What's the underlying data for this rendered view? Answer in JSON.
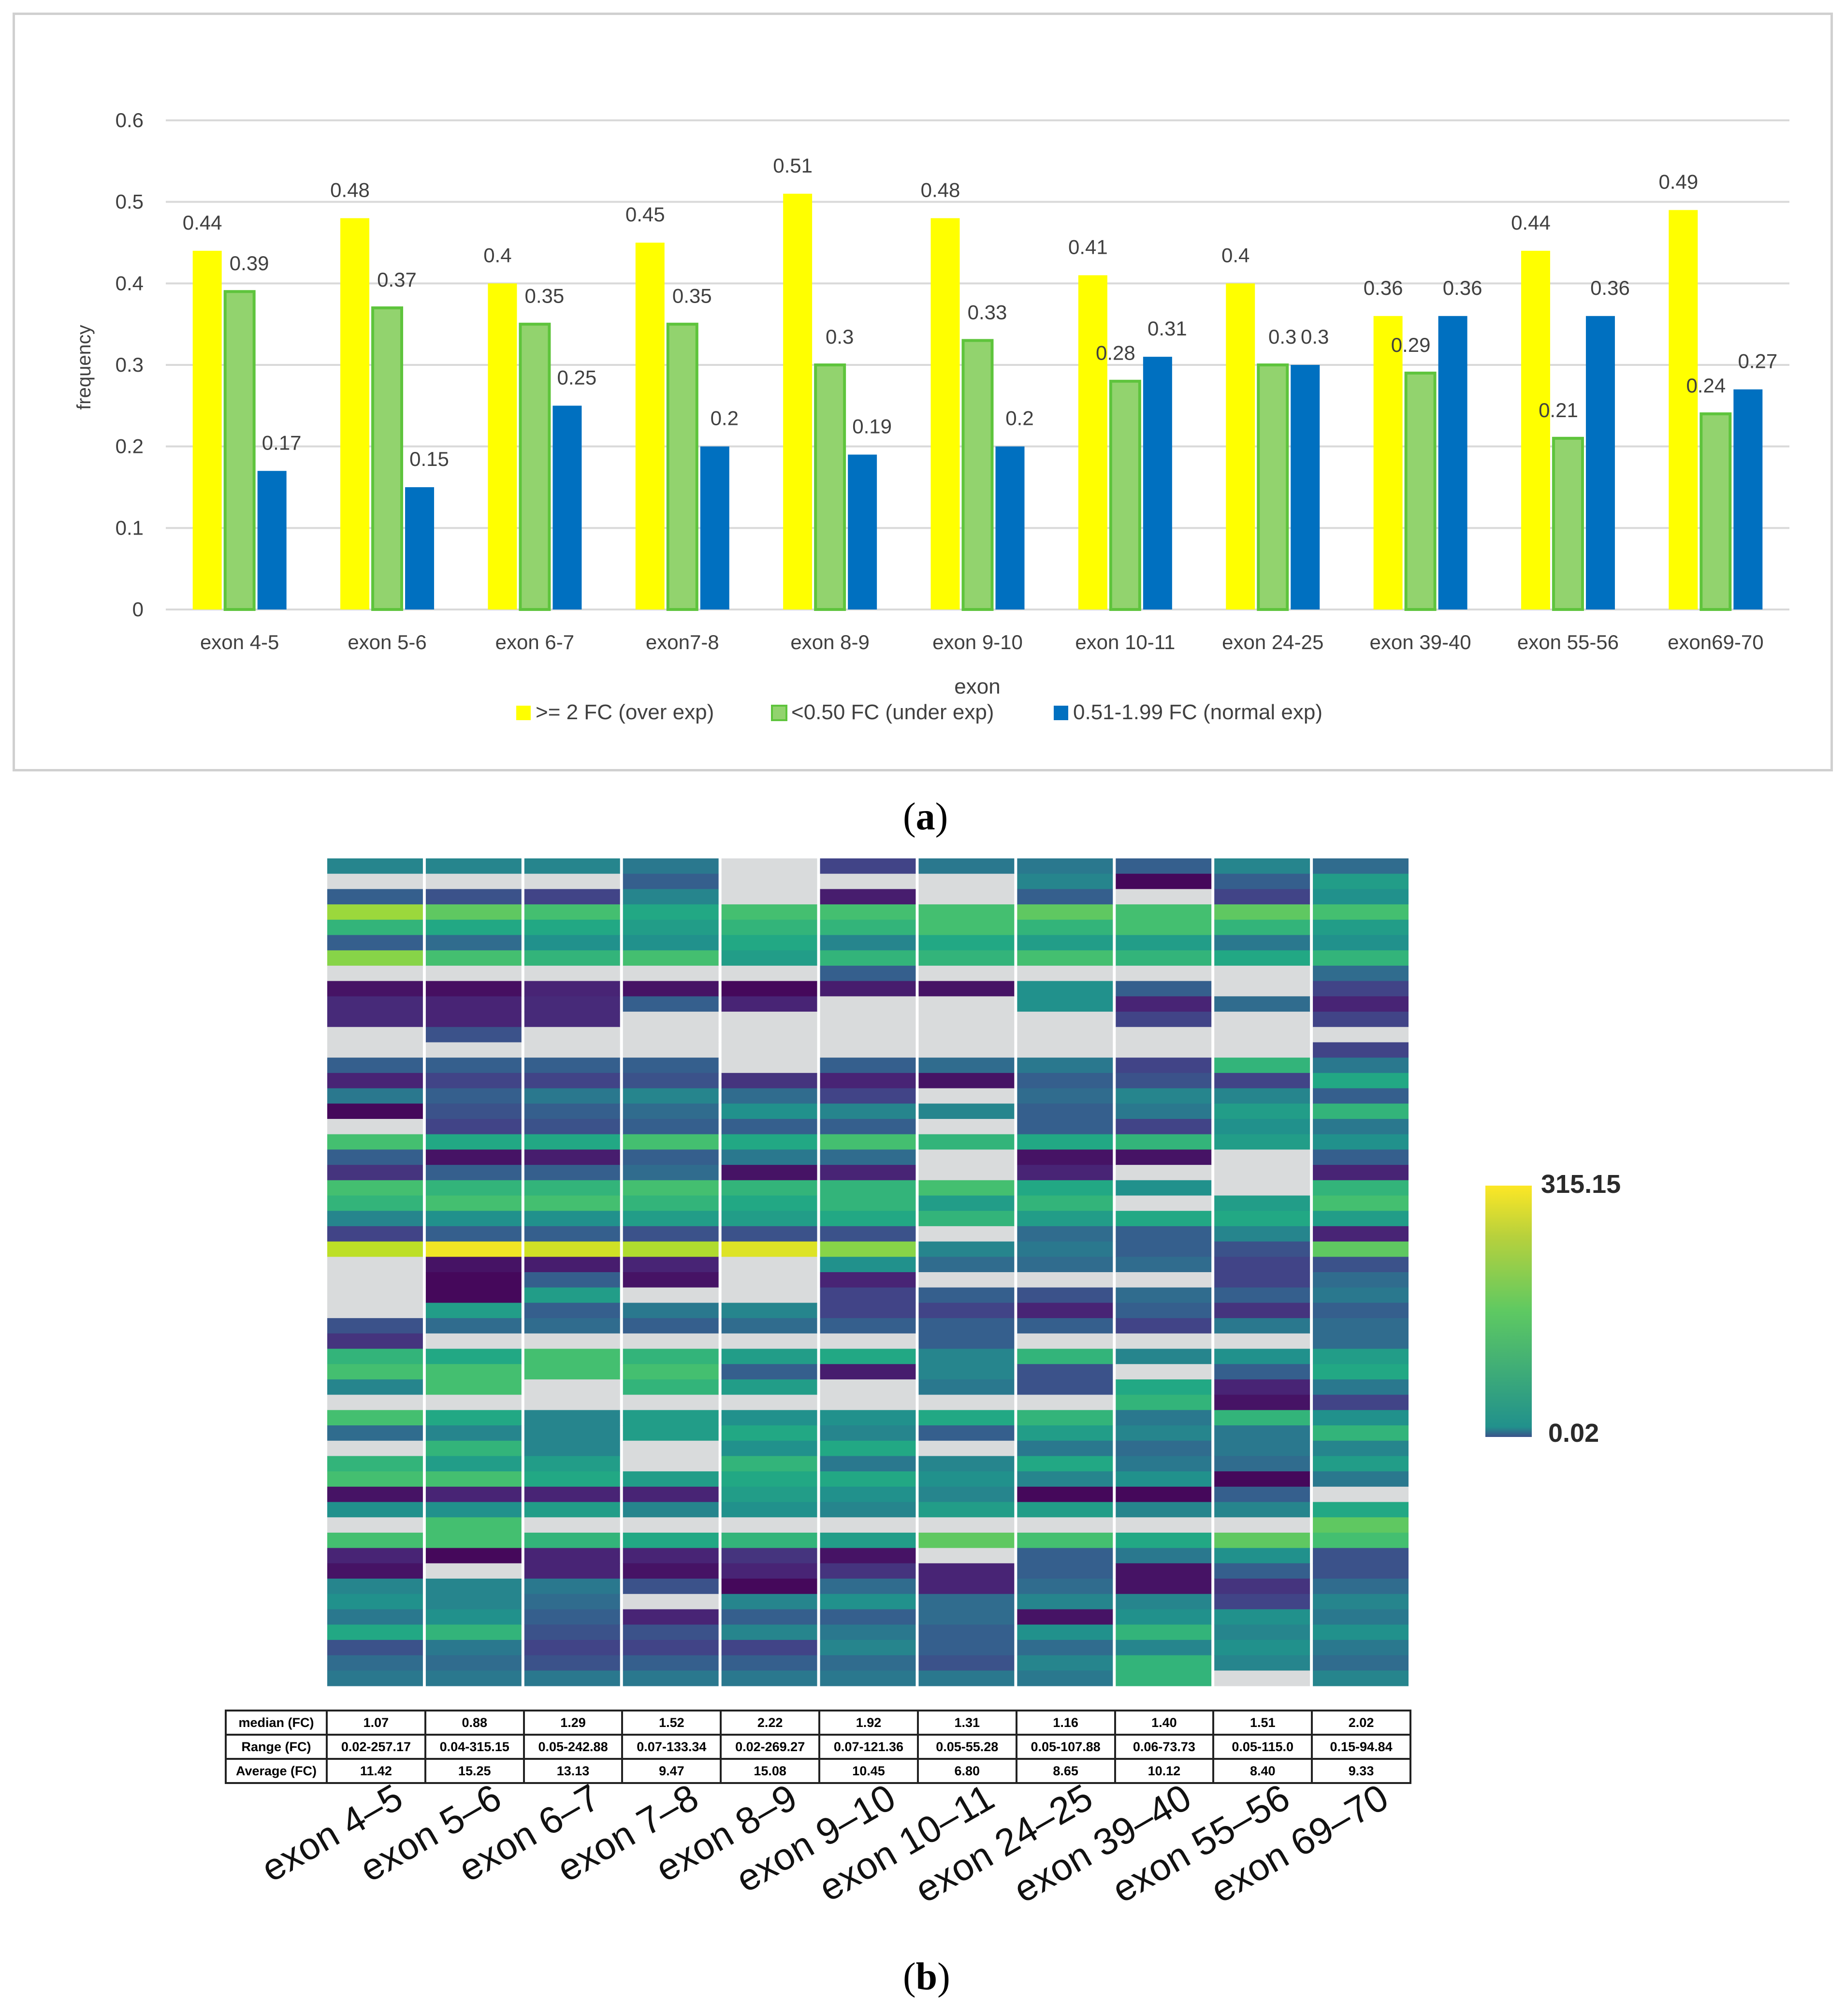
{
  "panel_a": {
    "label_open": "(",
    "label_letter": "a",
    "label_close": ")",
    "legend_position": "bottom",
    "colors": {
      "over": "#ffff00",
      "under": "#92d36e",
      "under_edge": "#5ec43c",
      "normal": "#0070c0",
      "grid": "#d9d9d9"
    }
  },
  "panel_b": {
    "label_open": "(",
    "label_letter": "b",
    "label_close": ")",
    "colorbar_max_label": "315.15",
    "colorbar_min_label": "0.02",
    "na_color": "#d9dbdc",
    "table": {
      "rows": [
        {
          "name": "median (FC)",
          "values": [
            "1.07",
            "0.88",
            "1.29",
            "1.52",
            "2.22",
            "1.92",
            "1.31",
            "1.16",
            "1.40",
            "1.51",
            "2.02"
          ]
        },
        {
          "name": "Range (FC)",
          "values": [
            "0.02-257.17",
            "0.04-315.15",
            "0.05-242.88",
            "0.07-133.34",
            "0.02-269.27",
            "0.07-121.36",
            "0.05-55.28",
            "0.05-107.88",
            "0.06-73.73",
            "0.05-115.0",
            "0.15-94.84"
          ]
        },
        {
          "name": "Average (FC)",
          "values": [
            "11.42",
            "15.25",
            "13.13",
            "9.47",
            "15.08",
            "10.45",
            "6.80",
            "8.65",
            "10.12",
            "8.40",
            "9.33"
          ]
        }
      ]
    },
    "x_labels": [
      "exon 4–5",
      "exon 5–6",
      "exon 6–7",
      "exon 7–8",
      "exon 8–9",
      "exon 9–10",
      "exon 10–11",
      "exon 24–25",
      "exon 39–40",
      "exon 55–56",
      "exon 69–70"
    ]
  },
  "chart_data": [
    {
      "type": "bar",
      "xlabel": "exon",
      "ylabel": "frequency",
      "ylim": [
        0,
        0.6
      ],
      "yticks": [
        "0",
        "0.1",
        "0.2",
        "0.3",
        "0.4",
        "0.5",
        "0.6"
      ],
      "grid": true,
      "categories": [
        "exon 4-5",
        "exon 5-6",
        "exon 6-7",
        "exon7-8",
        "exon 8-9",
        "exon 9-10",
        "exon 10-11",
        "exon 24-25",
        "exon 39-40",
        "exon 55-56",
        "exon69-70"
      ],
      "series": [
        {
          "name": ">= 2 FC (over exp)",
          "values": [
            0.44,
            0.48,
            0.4,
            0.45,
            0.51,
            0.48,
            0.41,
            0.4,
            0.36,
            0.44,
            0.49
          ]
        },
        {
          "name": "<0.50 FC (under exp)",
          "values": [
            0.39,
            0.37,
            0.35,
            0.35,
            0.3,
            0.33,
            0.28,
            0.3,
            0.29,
            0.21,
            0.24
          ]
        },
        {
          "name": "0.51-1.99 FC (normal exp)",
          "values": [
            0.17,
            0.15,
            0.25,
            0.2,
            0.19,
            0.2,
            0.31,
            0.3,
            0.36,
            0.36,
            0.27
          ]
        }
      ],
      "data_labels": [
        [
          "0.44",
          "0.48",
          "0.4",
          "0.45",
          "0.51",
          "0.48",
          "0.41",
          "0.4",
          "0.36",
          "0.44",
          "0.49"
        ],
        [
          "0.39",
          "0.37",
          "0.35",
          "0.35",
          "0.3",
          "0.33",
          "0.28",
          "0.3",
          "0.29",
          "0.21",
          "0.24"
        ],
        [
          "0.17",
          "0.15",
          "0.25",
          "0.2",
          "0.19",
          "0.2",
          "0.31",
          "0.3",
          "0.36",
          "0.36",
          "0.27"
        ]
      ]
    },
    {
      "type": "heatmap",
      "columns": [
        "exon 4–5",
        "exon 5–6",
        "exon 6–7",
        "exon 7–8",
        "exon 8–9",
        "exon 9–10",
        "exon 10–11",
        "exon 24–25",
        "exon 39–40",
        "exon 55–56",
        "exon 69–70"
      ],
      "value_range": [
        0.02,
        315.15
      ],
      "colormap": "viridis",
      "rows": 54,
      "missing_value": "NA",
      "note_values": "levels 0..1 of the viridis scale, -1 = not available",
      "levels": [
        [
          0.45,
          0.45,
          0.45,
          0.4,
          -1,
          0.2,
          0.4,
          0.4,
          0.3,
          0.45,
          0.35
        ],
        [
          -1,
          -1,
          -1,
          0.3,
          -1,
          -1,
          -1,
          0.45,
          0.02,
          0.3,
          0.55
        ],
        [
          0.3,
          0.25,
          0.2,
          0.45,
          -1,
          0.08,
          -1,
          0.3,
          -1,
          0.2,
          0.5
        ],
        [
          0.85,
          0.75,
          0.7,
          0.6,
          0.7,
          0.7,
          0.7,
          0.75,
          0.7,
          0.75,
          0.7
        ],
        [
          0.65,
          0.6,
          0.6,
          0.55,
          0.65,
          0.65,
          0.7,
          0.65,
          0.7,
          0.65,
          0.55
        ],
        [
          0.3,
          0.35,
          0.5,
          0.5,
          0.6,
          0.45,
          0.6,
          0.55,
          0.55,
          0.4,
          0.5
        ],
        [
          0.82,
          0.7,
          0.65,
          0.7,
          0.55,
          0.65,
          0.65,
          0.7,
          0.65,
          0.6,
          0.65
        ],
        [
          -1,
          -1,
          -1,
          -1,
          -1,
          0.3,
          -1,
          -1,
          -1,
          -1,
          0.35
        ],
        [
          0.05,
          0.04,
          0.1,
          0.05,
          0.02,
          0.08,
          0.05,
          0.5,
          0.3,
          -1,
          0.2
        ],
        [
          0.12,
          0.1,
          0.12,
          0.3,
          0.1,
          -1,
          -1,
          0.5,
          0.1,
          0.35,
          0.1
        ],
        [
          0.12,
          0.1,
          0.12,
          -1,
          -1,
          -1,
          -1,
          -1,
          0.2,
          -1,
          0.2
        ],
        [
          -1,
          0.25,
          -1,
          -1,
          -1,
          -1,
          -1,
          -1,
          -1,
          -1,
          -1
        ],
        [
          -1,
          -1,
          -1,
          -1,
          -1,
          -1,
          -1,
          -1,
          -1,
          -1,
          0.2
        ],
        [
          0.3,
          0.3,
          0.3,
          0.3,
          -1,
          0.3,
          0.35,
          0.4,
          0.2,
          0.65,
          0.4
        ],
        [
          0.1,
          0.2,
          0.2,
          0.25,
          0.15,
          0.1,
          0.05,
          0.3,
          0.25,
          0.2,
          0.6
        ],
        [
          0.4,
          0.3,
          0.4,
          0.45,
          0.35,
          0.2,
          -1,
          0.35,
          0.45,
          0.45,
          0.3
        ],
        [
          0.02,
          0.25,
          0.3,
          0.35,
          0.5,
          0.45,
          0.45,
          0.3,
          0.4,
          0.55,
          0.65
        ],
        [
          -1,
          0.2,
          0.25,
          0.3,
          0.3,
          0.3,
          -1,
          0.3,
          0.2,
          0.5,
          0.4
        ],
        [
          0.7,
          0.6,
          0.6,
          0.7,
          0.6,
          0.7,
          0.65,
          0.6,
          0.65,
          0.55,
          0.5
        ],
        [
          0.3,
          0.05,
          0.08,
          0.3,
          0.4,
          0.35,
          -1,
          0.05,
          0.05,
          -1,
          0.3
        ],
        [
          0.15,
          0.3,
          0.3,
          0.35,
          0.05,
          0.1,
          -1,
          0.1,
          -1,
          -1,
          0.1
        ],
        [
          0.7,
          0.65,
          0.65,
          0.7,
          0.65,
          0.65,
          0.7,
          0.6,
          0.5,
          -1,
          0.65
        ],
        [
          0.65,
          0.7,
          0.7,
          0.65,
          0.6,
          0.65,
          0.55,
          0.65,
          -1,
          0.55,
          0.7
        ],
        [
          0.45,
          0.5,
          0.5,
          0.55,
          0.55,
          0.6,
          0.65,
          0.55,
          0.6,
          0.6,
          0.55
        ],
        [
          0.2,
          0.3,
          0.3,
          0.25,
          0.25,
          0.25,
          -1,
          0.35,
          0.3,
          0.45,
          0.1
        ],
        [
          0.9,
          0.98,
          0.93,
          0.88,
          0.95,
          0.82,
          0.45,
          0.4,
          0.3,
          0.25,
          0.75
        ],
        [
          -1,
          0.05,
          0.08,
          0.1,
          -1,
          0.5,
          0.35,
          0.35,
          0.35,
          0.2,
          0.25
        ],
        [
          -1,
          0.02,
          0.3,
          0.05,
          -1,
          0.1,
          -1,
          -1,
          -1,
          0.2,
          0.35
        ],
        [
          -1,
          0.02,
          0.55,
          -1,
          -1,
          0.2,
          0.3,
          0.25,
          0.35,
          0.3,
          0.4
        ],
        [
          -1,
          0.55,
          0.3,
          0.4,
          0.45,
          0.2,
          0.2,
          0.1,
          0.3,
          0.15,
          0.3
        ],
        [
          0.25,
          0.35,
          0.35,
          0.3,
          0.35,
          0.3,
          0.3,
          0.3,
          0.2,
          0.4,
          0.35
        ],
        [
          0.15,
          -1,
          -1,
          -1,
          -1,
          -1,
          0.3,
          -1,
          -1,
          -1,
          0.35
        ],
        [
          0.65,
          0.6,
          0.7,
          0.65,
          0.55,
          0.6,
          0.45,
          0.65,
          0.45,
          0.5,
          0.55
        ],
        [
          0.7,
          0.7,
          0.7,
          0.7,
          0.3,
          0.08,
          0.45,
          0.25,
          -1,
          0.3,
          0.6
        ],
        [
          0.45,
          0.7,
          -1,
          0.65,
          0.55,
          -1,
          0.4,
          0.25,
          0.6,
          0.1,
          0.4
        ],
        [
          -1,
          -1,
          -1,
          -1,
          -1,
          -1,
          -1,
          -1,
          0.65,
          0.05,
          0.2
        ],
        [
          0.7,
          0.6,
          0.45,
          0.55,
          0.5,
          0.5,
          0.6,
          0.65,
          0.4,
          0.65,
          0.5
        ],
        [
          0.35,
          0.45,
          0.45,
          0.55,
          0.6,
          0.45,
          0.3,
          0.55,
          0.45,
          0.4,
          0.65
        ],
        [
          -1,
          0.65,
          0.45,
          -1,
          0.5,
          0.6,
          -1,
          0.4,
          0.35,
          0.4,
          0.45
        ],
        [
          0.65,
          0.55,
          0.55,
          -1,
          0.65,
          0.4,
          0.45,
          0.6,
          0.4,
          0.35,
          0.55
        ],
        [
          0.7,
          0.7,
          0.6,
          0.55,
          0.6,
          0.6,
          0.5,
          0.45,
          0.5,
          0.02,
          0.4
        ],
        [
          0.05,
          0.1,
          0.1,
          0.1,
          0.55,
          0.5,
          0.45,
          0.02,
          0.02,
          0.3,
          -1
        ],
        [
          0.5,
          0.5,
          0.55,
          0.45,
          0.5,
          0.45,
          0.55,
          0.55,
          0.45,
          0.45,
          0.6
        ],
        [
          -1,
          0.7,
          -1,
          -1,
          -1,
          -1,
          -1,
          -1,
          -1,
          -1,
          0.75
        ],
        [
          0.7,
          0.7,
          0.65,
          0.6,
          0.65,
          0.55,
          0.75,
          0.7,
          0.6,
          0.75,
          0.7
        ],
        [
          0.1,
          0.02,
          0.1,
          0.1,
          0.15,
          0.05,
          -1,
          0.3,
          0.4,
          0.5,
          0.25
        ],
        [
          0.05,
          -1,
          0.1,
          0.05,
          0.1,
          0.15,
          0.1,
          0.3,
          0.05,
          0.3,
          0.25
        ],
        [
          0.45,
          0.45,
          0.4,
          0.25,
          0.02,
          0.35,
          0.1,
          0.35,
          0.05,
          0.15,
          0.35
        ],
        [
          0.5,
          0.45,
          0.35,
          -1,
          0.45,
          0.5,
          0.35,
          0.45,
          0.45,
          0.2,
          0.45
        ],
        [
          0.4,
          0.5,
          0.3,
          0.1,
          0.3,
          0.3,
          0.35,
          0.05,
          0.5,
          0.5,
          0.4
        ],
        [
          0.6,
          0.65,
          0.25,
          0.25,
          0.45,
          0.4,
          0.3,
          0.5,
          0.65,
          0.45,
          0.5
        ],
        [
          0.25,
          0.4,
          0.2,
          0.2,
          0.2,
          0.45,
          0.3,
          0.35,
          0.45,
          0.5,
          0.4
        ],
        [
          0.35,
          0.35,
          0.25,
          0.3,
          0.3,
          0.35,
          0.25,
          0.45,
          0.65,
          0.45,
          0.35
        ],
        [
          0.4,
          0.4,
          0.4,
          0.4,
          0.4,
          0.4,
          0.4,
          0.4,
          0.65,
          -1,
          0.45
        ]
      ]
    }
  ]
}
